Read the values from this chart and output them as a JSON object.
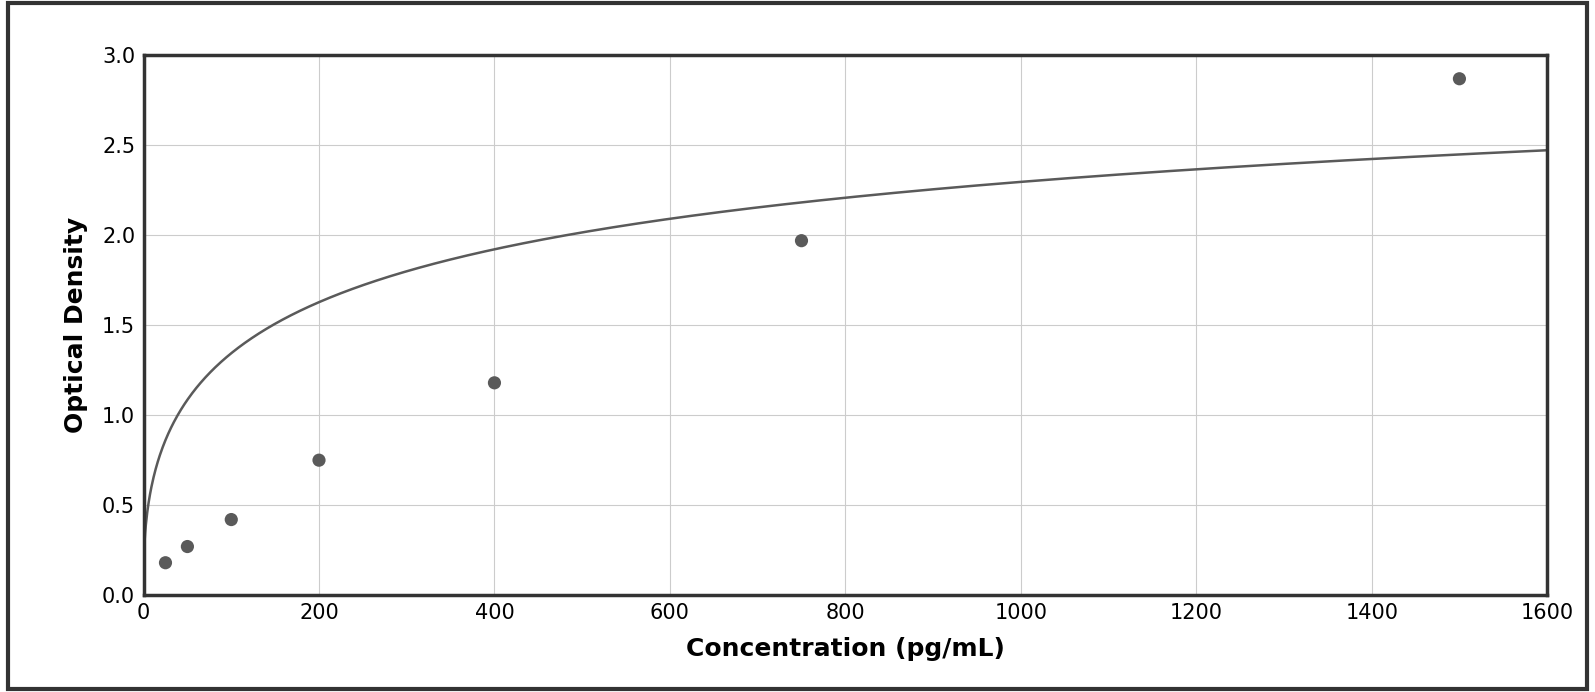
{
  "x_data": [
    25,
    50,
    100,
    200,
    400,
    750,
    1500
  ],
  "y_data": [
    0.18,
    0.27,
    0.42,
    0.75,
    1.18,
    1.97,
    2.87
  ],
  "xlabel": "Concentration (pg/mL)",
  "ylabel": "Optical Density",
  "xlim": [
    0,
    1600
  ],
  "ylim": [
    0,
    3.0
  ],
  "xticks": [
    0,
    200,
    400,
    600,
    800,
    1000,
    1200,
    1400,
    1600
  ],
  "yticks": [
    0,
    0.5,
    1.0,
    1.5,
    2.0,
    2.5,
    3.0
  ],
  "dot_color": "#5a5a5a",
  "line_color": "#5a5a5a",
  "background_color": "#ffffff",
  "grid_color": "#cccccc",
  "xlabel_fontsize": 18,
  "ylabel_fontsize": 18,
  "tick_fontsize": 15,
  "dot_size": 90,
  "line_width": 1.8,
  "border_color": "#333333",
  "border_linewidth": 2.5
}
